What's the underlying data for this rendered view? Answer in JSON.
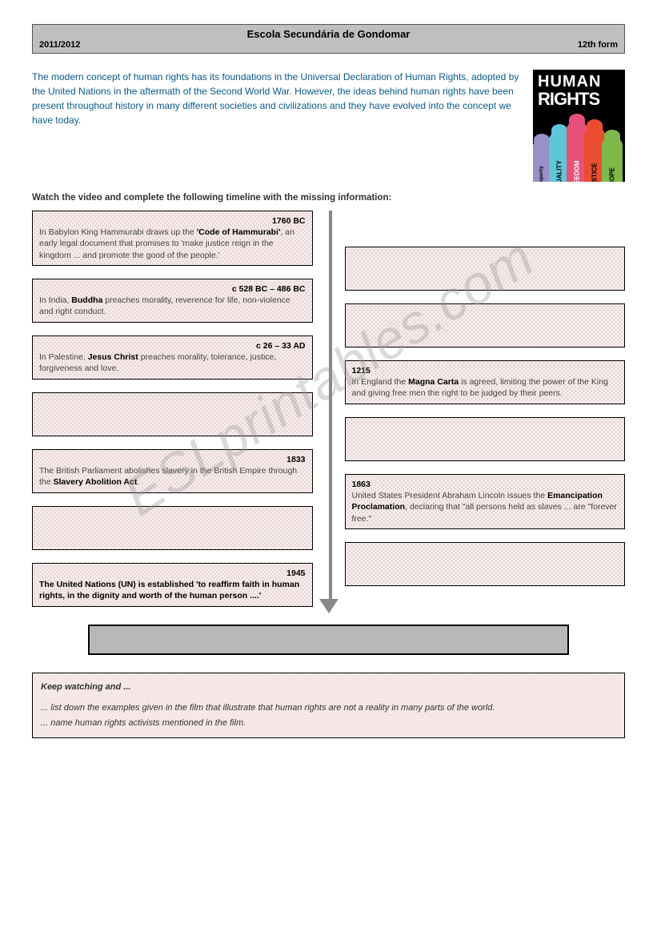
{
  "header": {
    "title": "Escola Secundária de Gondomar",
    "left": "2011/2012",
    "right": "12th form"
  },
  "intro_text": "The modern concept of human rights has its foundations in the Universal Declaration of Human Rights, adopted by the United Nations in the aftermath of the Second World War. However, the ideas behind human rights have been present throughout history in many different societies and civilizations and they have evolved into the concept we have today.",
  "instruction": "Watch the video and complete the following timeline with the missing information:",
  "poster": {
    "line1": "HUMAN",
    "line2": "RIGHTS",
    "hand_words": [
      "prosperity",
      "EQUALITY",
      "FREEDOM",
      "JUSTICE",
      "HOPE"
    ],
    "hand_colors": [
      "#9b8fc7",
      "#5fc6d8",
      "#e6527a",
      "#ea4d2f",
      "#7fb94a"
    ]
  },
  "left_boxes": [
    {
      "date": "1760 BC",
      "text_pre": "In Babylon King Hammurabi draws up the ",
      "bold": "'Code of Hammurabi'",
      "text_post": ", an early legal document that promises to 'make justice reign in the kingdom ... and promote the good of the people.'"
    },
    {
      "date": "c 528 BC – 486 BC",
      "text_pre": "In India, ",
      "bold": "Buddha",
      "text_post": " preaches morality, reverence for life, non-violence and right conduct."
    },
    {
      "date": "c 26 – 33 AD",
      "text_pre": "In Palestine, ",
      "bold": "Jesus Christ",
      "text_post": " preaches morality, tolerance, justice, forgiveness and love."
    },
    {
      "empty": true
    },
    {
      "date": "1833",
      "text_pre": "The British Parliament abolishes slavery in the British Empire through the ",
      "bold": "Slavery Abolition Act",
      "text_post": "."
    },
    {
      "empty": true
    },
    {
      "date": "1945",
      "text_pre": "",
      "bold": "The United Nations (UN) is established 'to reaffirm faith in human rights, in the dignity and worth of the human person ....'",
      "text_post": ""
    }
  ],
  "right_boxes": [
    {
      "empty": true
    },
    {
      "empty": true
    },
    {
      "date": "1215",
      "text_pre": "In England the ",
      "bold": "Magna Carta",
      "text_post": " is agreed, limiting the power of the King and giving free men the right to be judged by their peers."
    },
    {
      "empty": true
    },
    {
      "date": "1863",
      "text_pre": "United States President Abraham Lincoln issues the ",
      "bold": "Emancipation Proclamation",
      "text_post": ", declaring that \"all persons held as slaves ... are \"forever free.\""
    },
    {
      "empty": true
    }
  ],
  "keep": {
    "title": "Keep watching and ...",
    "line1": "... list down the examples given in the film that illustrate that human rights are not a reality in many parts of the world.",
    "line2": "... name human rights activists mentioned in the film."
  },
  "watermark": "ESLprintables.com"
}
